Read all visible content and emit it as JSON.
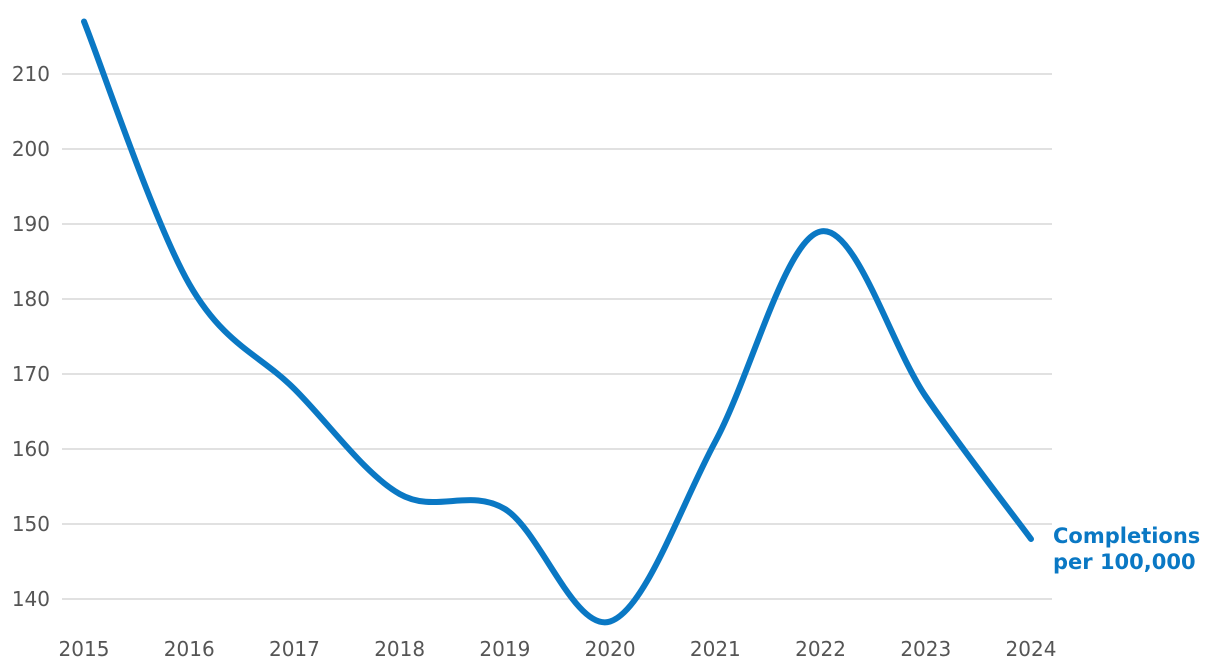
{
  "chart_data": {
    "type": "line",
    "title": "",
    "xlabel": "",
    "ylabel": "",
    "x": [
      "2015",
      "2016",
      "2017",
      "2018",
      "2019",
      "2020",
      "2021",
      "2022",
      "2023",
      "2024"
    ],
    "series": [
      {
        "name": "Completions per 100,000",
        "name_lines": [
          "Completions",
          "per 100,000"
        ],
        "values": [
          217,
          182,
          168,
          154,
          152,
          137,
          161,
          189,
          167,
          148
        ],
        "color": "#0a78c4"
      }
    ],
    "ylim": [
      136,
      217
    ],
    "yticks": [
      140,
      150,
      160,
      170,
      180,
      190,
      200,
      210
    ],
    "grid": true,
    "legend": "direct label at end of line"
  }
}
